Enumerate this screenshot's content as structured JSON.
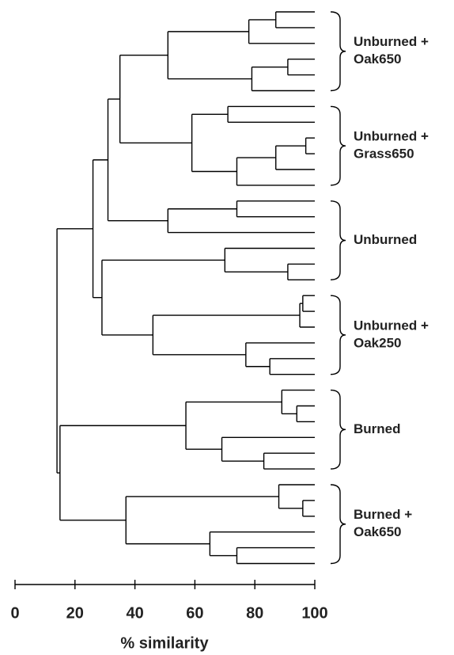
{
  "chart_data": {
    "type": "dendrogram",
    "xlabel": "% similarity",
    "xlim": [
      0,
      100
    ],
    "xticks": [
      0,
      20,
      40,
      60,
      80,
      100
    ],
    "color": "#000000",
    "tree": {
      "similarity": 14,
      "children": [
        {
          "similarity": 26,
          "children": [
            {
              "similarity": 31,
              "children": [
                {
                  "similarity": 35,
                  "children": [
                    {
                      "similarity": 51,
                      "children": [
                        {
                          "similarity": 78,
                          "children": [
                            {
                              "similarity": 87,
                              "children": [
                                100,
                                100
                              ]
                            },
                            100
                          ]
                        },
                        {
                          "similarity": 79,
                          "children": [
                            {
                              "similarity": 91,
                              "children": [
                                100,
                                100
                              ]
                            },
                            100
                          ]
                        }
                      ]
                    },
                    {
                      "similarity": 59,
                      "children": [
                        {
                          "similarity": 71,
                          "children": [
                            100,
                            100
                          ]
                        },
                        {
                          "similarity": 74,
                          "children": [
                            {
                              "similarity": 87,
                              "children": [
                                {
                                  "similarity": 97,
                                  "children": [
                                    100,
                                    100
                                  ]
                                },
                                100
                              ]
                            },
                            100
                          ]
                        }
                      ]
                    }
                  ]
                },
                {
                  "similarity": 51,
                  "children": [
                    {
                      "similarity": 74,
                      "children": [
                        100,
                        100
                      ]
                    },
                    100
                  ]
                }
              ]
            },
            {
              "similarity": 29,
              "children": [
                {
                  "similarity": 70,
                  "children": [
                    100,
                    {
                      "similarity": 91,
                      "children": [
                        100,
                        100
                      ]
                    }
                  ]
                },
                {
                  "similarity": 46,
                  "children": [
                    {
                      "similarity": 95,
                      "children": [
                        {
                          "similarity": 96,
                          "children": [
                            100,
                            100
                          ]
                        },
                        100
                      ]
                    },
                    {
                      "similarity": 77,
                      "children": [
                        100,
                        {
                          "similarity": 85,
                          "children": [
                            100,
                            100
                          ]
                        }
                      ]
                    }
                  ]
                }
              ]
            }
          ]
        },
        {
          "similarity": 15,
          "children": [
            {
              "similarity": 57,
              "children": [
                {
                  "similarity": 89,
                  "children": [
                    100,
                    {
                      "similarity": 94,
                      "children": [
                        100,
                        100
                      ]
                    }
                  ]
                },
                {
                  "similarity": 69,
                  "children": [
                    100,
                    {
                      "similarity": 83,
                      "children": [
                        100,
                        100
                      ]
                    }
                  ]
                }
              ]
            },
            {
              "similarity": 37,
              "children": [
                {
                  "similarity": 88,
                  "children": [
                    100,
                    {
                      "similarity": 96,
                      "children": [
                        100,
                        100
                      ]
                    }
                  ]
                },
                {
                  "similarity": 65,
                  "children": [
                    100,
                    {
                      "similarity": 74,
                      "children": [
                        100,
                        100
                      ]
                    }
                  ]
                }
              ]
            }
          ]
        }
      ]
    },
    "groups": [
      {
        "label": [
          "Unburned +",
          "Oak650"
        ],
        "leaves": 6
      },
      {
        "label": [
          "Unburned +",
          "Grass650"
        ],
        "leaves": 6
      },
      {
        "label": [
          "Unburned"
        ],
        "leaves": 6
      },
      {
        "label": [
          "Unburned +",
          "Oak250"
        ],
        "leaves": 6
      },
      {
        "label": [
          "Burned"
        ],
        "leaves": 6
      },
      {
        "label": [
          "Burned +",
          "Oak650"
        ],
        "leaves": 6
      }
    ]
  }
}
